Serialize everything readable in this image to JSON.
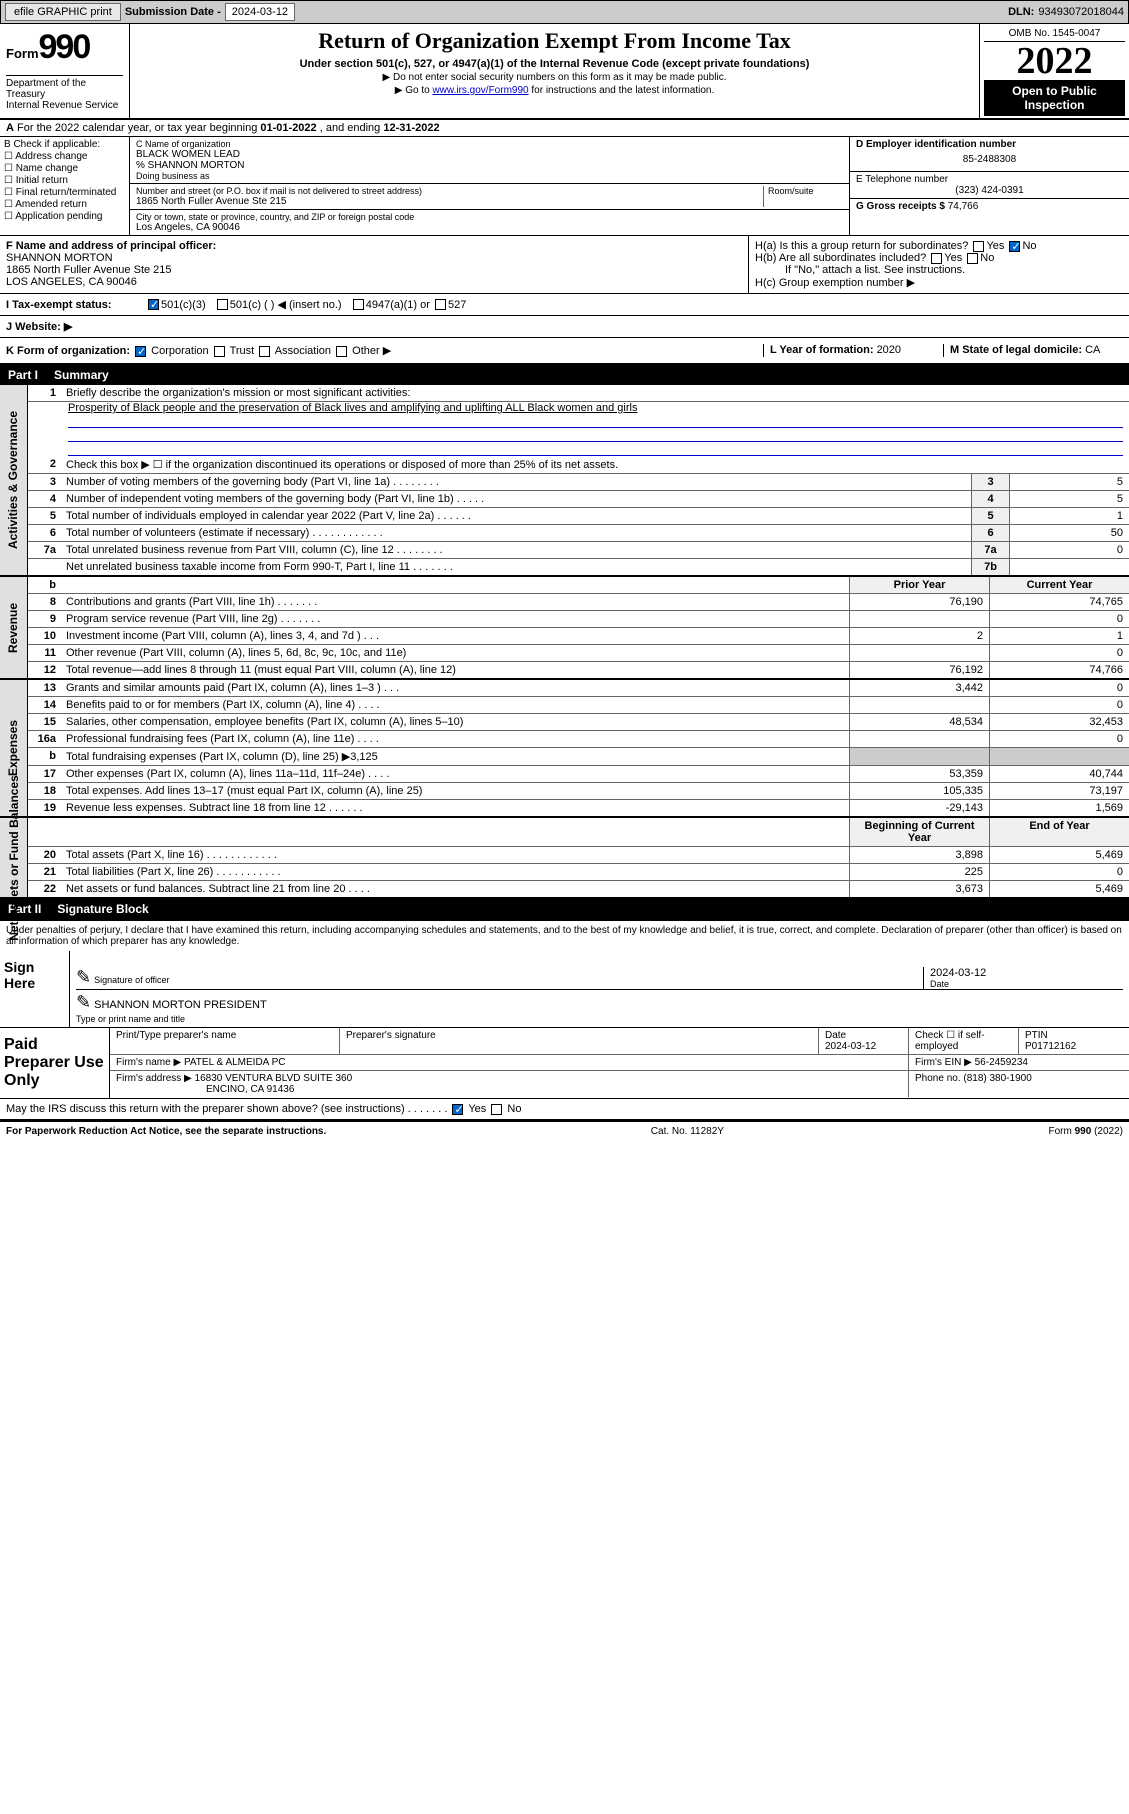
{
  "topbar": {
    "efile": "efile GRAPHIC print",
    "subdate_label": "Submission Date - ",
    "subdate": "2024-03-12",
    "dln_label": "DLN: ",
    "dln": "93493072018044"
  },
  "header": {
    "form_prefix": "Form",
    "form_no": "990",
    "dept": "Department of the Treasury\nInternal Revenue Service",
    "title": "Return of Organization Exempt From Income Tax",
    "subtitle": "Under section 501(c), 527, or 4947(a)(1) of the Internal Revenue Code (except private foundations)",
    "instr1": "▶ Do not enter social security numbers on this form as it may be made public.",
    "instr2_pre": "▶ Go to ",
    "instr2_link": "www.irs.gov/Form990",
    "instr2_post": " for instructions and the latest information.",
    "omb": "OMB No. 1545-0047",
    "year": "2022",
    "open": "Open to Public Inspection"
  },
  "row_a": {
    "text_pre": "For the 2022 calendar year, or tax year beginning ",
    "begin": "01-01-2022",
    "text_mid": " , and ending ",
    "end": "12-31-2022"
  },
  "col_b": {
    "hdr": "B Check if applicable:",
    "opts": [
      "Address change",
      "Name change",
      "Initial return",
      "Final return/terminated",
      "Amended return",
      "Application pending"
    ]
  },
  "col_c": {
    "name_label": "C Name of organization",
    "name": "BLACK WOMEN LEAD",
    "care_of": "% SHANNON MORTON",
    "dba_label": "Doing business as",
    "addr_label": "Number and street (or P.O. box if mail is not delivered to street address)",
    "room_label": "Room/suite",
    "addr": "1865 North Fuller Avenue Ste 215",
    "city_label": "City or town, state or province, country, and ZIP or foreign postal code",
    "city": "Los Angeles, CA  90046"
  },
  "col_d": {
    "label": "D Employer identification number",
    "val": "85-2488308"
  },
  "col_e": {
    "label": "E Telephone number",
    "val": "(323) 424-0391"
  },
  "col_g": {
    "label": "G Gross receipts $ ",
    "val": "74,766"
  },
  "col_f": {
    "label": "F  Name and address of principal officer:",
    "name": "SHANNON MORTON",
    "addr1": "1865 North Fuller Avenue Ste 215",
    "addr2": "LOS ANGELES, CA  90046"
  },
  "col_h": {
    "ha": "H(a)  Is this a group return for subordinates?",
    "hb": "H(b)  Are all subordinates included?",
    "hb_note": "If \"No,\" attach a list. See instructions.",
    "hc": "H(c)  Group exemption number ▶",
    "yes": "Yes",
    "no": "No"
  },
  "row_i": {
    "label": "I   Tax-exempt status:",
    "o1": "501(c)(3)",
    "o2": "501(c) (   ) ◀ (insert no.)",
    "o3": "4947(a)(1) or",
    "o4": "527"
  },
  "row_j": {
    "label": "J   Website: ▶"
  },
  "row_k": {
    "left_label": "K Form of organization:",
    "opts": [
      "Corporation",
      "Trust",
      "Association",
      "Other ▶"
    ],
    "l_label": "L Year of formation: ",
    "l_val": "2020",
    "m_label": "M State of legal domicile: ",
    "m_val": "CA"
  },
  "part1": {
    "no": "Part I",
    "title": "Summary"
  },
  "summary": {
    "l1": "Briefly describe the organization's mission or most significant activities:",
    "l1_text": "Prosperity of Black people and the preservation of Black lives and amplifying and uplifting ALL Black women and girls",
    "l2": "Check this box ▶ ☐  if the organization discontinued its operations or disposed of more than 25% of its net assets.",
    "rows_ag": [
      {
        "n": "3",
        "t": "Number of voting members of the governing body (Part VI, line 1a)   .    .    .    .    .    .    .    .",
        "b": "3",
        "v": "5"
      },
      {
        "n": "4",
        "t": "Number of independent voting members of the governing body (Part VI, line 1b)   .    .    .    .    .",
        "b": "4",
        "v": "5"
      },
      {
        "n": "5",
        "t": "Total number of individuals employed in calendar year 2022 (Part V, line 2a)   .    .    .    .    .    .",
        "b": "5",
        "v": "1"
      },
      {
        "n": "6",
        "t": "Total number of volunteers (estimate if necessary)    .    .    .    .    .    .    .    .    .    .    .    .",
        "b": "6",
        "v": "50"
      },
      {
        "n": "7a",
        "t": "Total unrelated business revenue from Part VIII, column (C), line 12   .    .    .    .    .    .    .    .",
        "b": "7a",
        "v": "0"
      },
      {
        "n": "",
        "t": "Net unrelated business taxable income from Form 990-T, Part I, line 11   .    .    .    .    .    .    .",
        "b": "7b",
        "v": ""
      }
    ],
    "col_hdrs": {
      "n": "b",
      "prior": "Prior Year",
      "curr": "Current Year"
    },
    "rows_rev": [
      {
        "n": "8",
        "t": "Contributions and grants (Part VIII, line 1h)    .    .    .    .    .    .    .",
        "p": "76,190",
        "c": "74,765"
      },
      {
        "n": "9",
        "t": "Program service revenue (Part VIII, line 2g)    .    .    .    .    .    .    .",
        "p": "",
        "c": "0"
      },
      {
        "n": "10",
        "t": "Investment income (Part VIII, column (A), lines 3, 4, and 7d )    .    .    .",
        "p": "2",
        "c": "1"
      },
      {
        "n": "11",
        "t": "Other revenue (Part VIII, column (A), lines 5, 6d, 8c, 9c, 10c, and 11e)",
        "p": "",
        "c": "0"
      },
      {
        "n": "12",
        "t": "Total revenue—add lines 8 through 11 (must equal Part VIII, column (A), line 12)",
        "p": "76,192",
        "c": "74,766"
      }
    ],
    "rows_exp": [
      {
        "n": "13",
        "t": "Grants and similar amounts paid (Part IX, column (A), lines 1–3 )   .    .    .",
        "p": "3,442",
        "c": "0"
      },
      {
        "n": "14",
        "t": "Benefits paid to or for members (Part IX, column (A), line 4)   .    .    .    .",
        "p": "",
        "c": "0"
      },
      {
        "n": "15",
        "t": "Salaries, other compensation, employee benefits (Part IX, column (A), lines 5–10)",
        "p": "48,534",
        "c": "32,453"
      },
      {
        "n": "16a",
        "t": "Professional fundraising fees (Part IX, column (A), line 11e)   .    .    .    .",
        "p": "",
        "c": "0"
      },
      {
        "n": "b",
        "t": "Total fundraising expenses (Part IX, column (D), line 25) ▶3,125",
        "p": null,
        "c": null
      },
      {
        "n": "17",
        "t": "Other expenses (Part IX, column (A), lines 11a–11d, 11f–24e)   .    .    .    .",
        "p": "53,359",
        "c": "40,744"
      },
      {
        "n": "18",
        "t": "Total expenses. Add lines 13–17 (must equal Part IX, column (A), line 25)",
        "p": "105,335",
        "c": "73,197"
      },
      {
        "n": "19",
        "t": "Revenue less expenses. Subtract line 18 from line 12   .    .    .    .    .    .",
        "p": "-29,143",
        "c": "1,569"
      }
    ],
    "na_hdrs": {
      "b": "Beginning of Current Year",
      "e": "End of Year"
    },
    "rows_na": [
      {
        "n": "20",
        "t": "Total assets (Part X, line 16)   .    .    .    .    .    .    .    .    .    .    .    .",
        "p": "3,898",
        "c": "5,469"
      },
      {
        "n": "21",
        "t": "Total liabilities (Part X, line 26)   .    .    .    .    .    .    .    .    .    .    .",
        "p": "225",
        "c": "0"
      },
      {
        "n": "22",
        "t": "Net assets or fund balances. Subtract line 21 from line 20   .    .    .    .",
        "p": "3,673",
        "c": "5,469"
      }
    ]
  },
  "side_labels": {
    "ag": "Activities & Governance",
    "rev": "Revenue",
    "exp": "Expenses",
    "na": "Net Assets or Fund Balances"
  },
  "part2": {
    "no": "Part II",
    "title": "Signature Block"
  },
  "sig": {
    "declaration": "Under penalties of perjury, I declare that I have examined this return, including accompanying schedules and statements, and to the best of my knowledge and belief, it is true, correct, and complete. Declaration of preparer (other than officer) is based on all information of which preparer has any knowledge.",
    "sign_here": "Sign Here",
    "sig_officer": "Signature of officer",
    "date_label": "Date",
    "date": "2024-03-12",
    "name_title": "SHANNON MORTON  PRESIDENT",
    "name_label": "Type or print name and title"
  },
  "paid": {
    "label": "Paid Preparer Use Only",
    "h1": "Print/Type preparer's name",
    "h2": "Preparer's signature",
    "h3": "Date",
    "h3v": "2024-03-12",
    "h4": "Check ☐ if self-employed",
    "h5": "PTIN",
    "h5v": "P01712162",
    "firm_label": "Firm's name    ▶ ",
    "firm": "PATEL & ALMEIDA PC",
    "ein_label": "Firm's EIN ▶ ",
    "ein": "56-2459234",
    "addr_label": "Firm's address ▶ ",
    "addr1": "16830 VENTURA BLVD SUITE 360",
    "addr2": "ENCINO, CA  91436",
    "phone_label": "Phone no. ",
    "phone": "(818) 380-1900"
  },
  "discuss": {
    "text": "May the IRS discuss this return with the preparer shown above? (see instructions)   .    .    .    .    .    .    .",
    "yes": "Yes",
    "no": "No"
  },
  "footer": {
    "left": "For Paperwork Reduction Act Notice, see the separate instructions.",
    "mid": "Cat. No. 11282Y",
    "right": "Form 990 (2022)"
  }
}
